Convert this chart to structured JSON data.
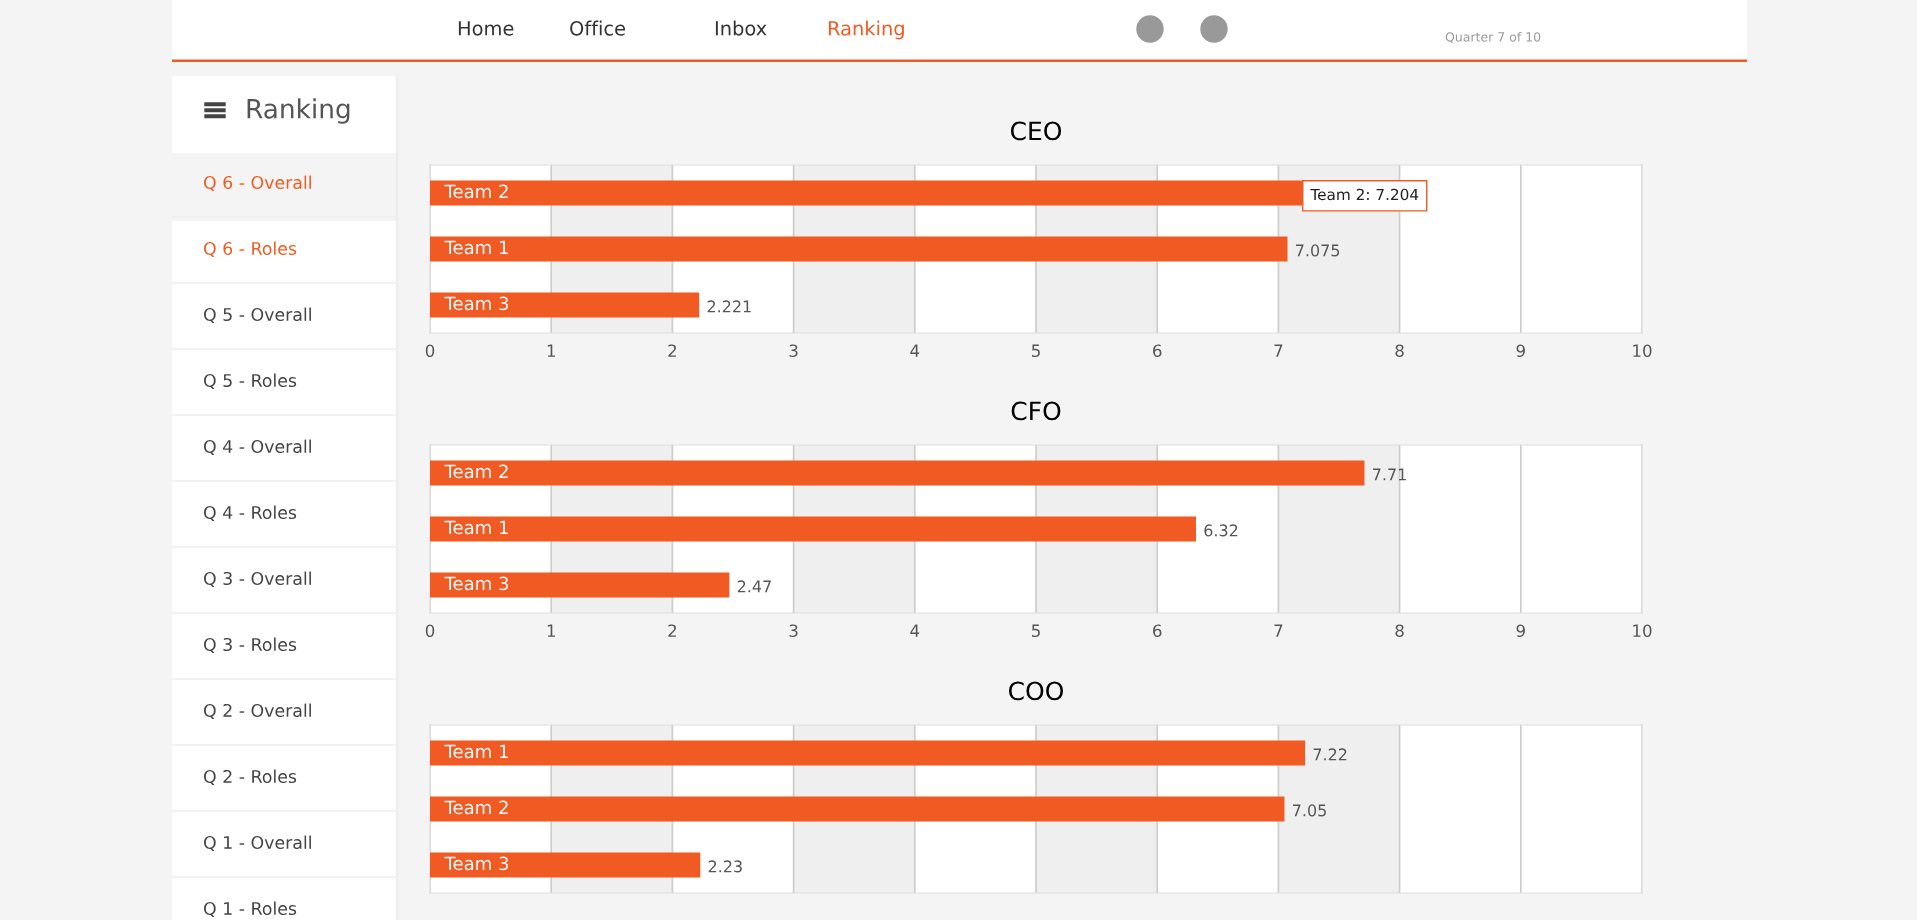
{
  "chart_data": [
    {
      "type": "other",
      "annotations": [
        "Home",
        "Office",
        "Inbox",
        "Ranking",
        "Quarter 7 of 10"
      ]
    },
    {
      "type": "other",
      "title": "Ranking",
      "annotations": [
        "Q 6 - Overall",
        "Q 6 - Roles",
        "Q 5 - Overall",
        "Q 5 - Roles",
        "Q 4 - Overall",
        "Q 4 - Roles",
        "Q 3 - Overall",
        "Q 3 - Roles",
        "Q 2 - Overall",
        "Q 2 - Roles",
        "Q 1 - Overall",
        "Q 1 - Roles"
      ]
    },
    {
      "type": "bar",
      "orientation": "horizontal",
      "title": "CEO",
      "categories": [
        "Team 2",
        "Team 1",
        "Team 3"
      ],
      "values": [
        7.204,
        7.075,
        2.221
      ],
      "color": "#f15a22",
      "value_labels": [
        "Team 2: 7.204",
        "7.075",
        "2.221"
      ],
      "xlim": [
        0,
        10
      ],
      "xticks": [
        0,
        1,
        2,
        3,
        4,
        5,
        6,
        7,
        8,
        9,
        10
      ],
      "grid": "x",
      "bands": [
        {
          "axis": "x",
          "from": 1,
          "to": 2,
          "color": "#efefef"
        },
        {
          "axis": "x",
          "from": 3,
          "to": 4,
          "color": "#efefef"
        },
        {
          "axis": "x",
          "from": 5,
          "to": 6,
          "color": "#efefef"
        },
        {
          "axis": "x",
          "from": 7,
          "to": 8,
          "color": "#efefef"
        }
      ]
    },
    {
      "type": "bar",
      "orientation": "horizontal",
      "title": "CFO",
      "categories": [
        "Team 2",
        "Team 1",
        "Team 3"
      ],
      "values": [
        7.71,
        6.32,
        2.47
      ],
      "color": "#f15a22",
      "data_labels": true,
      "xlim": [
        0,
        10
      ],
      "xticks": [
        0,
        1,
        2,
        3,
        4,
        5,
        6,
        7,
        8,
        9,
        10
      ],
      "grid": "x",
      "bands": [
        {
          "axis": "x",
          "from": 1,
          "to": 2,
          "color": "#efefef"
        },
        {
          "axis": "x",
          "from": 3,
          "to": 4,
          "color": "#efefef"
        },
        {
          "axis": "x",
          "from": 5,
          "to": 6,
          "color": "#efefef"
        },
        {
          "axis": "x",
          "from": 7,
          "to": 8,
          "color": "#efefef"
        }
      ]
    },
    {
      "type": "bar",
      "orientation": "horizontal",
      "title": "COO",
      "categories": [
        "Team 1",
        "Team 2",
        "Team 3"
      ],
      "values": [
        7.22,
        7.05,
        2.23
      ],
      "color": "#f15a22",
      "data_labels": true,
      "xlim": [
        0,
        10
      ],
      "xticks": [
        0,
        1,
        2,
        3,
        4,
        5,
        6,
        7,
        8,
        9,
        10
      ],
      "grid": "x",
      "tick_labels": false,
      "bands": [
        {
          "axis": "x",
          "from": 1,
          "to": 2,
          "color": "#efefef"
        },
        {
          "axis": "x",
          "from": 3,
          "to": 4,
          "color": "#efefef"
        },
        {
          "axis": "x",
          "from": 5,
          "to": 6,
          "color": "#efefef"
        },
        {
          "axis": "x",
          "from": 7,
          "to": 8,
          "color": "#efefef"
        }
      ]
    }
  ]
}
